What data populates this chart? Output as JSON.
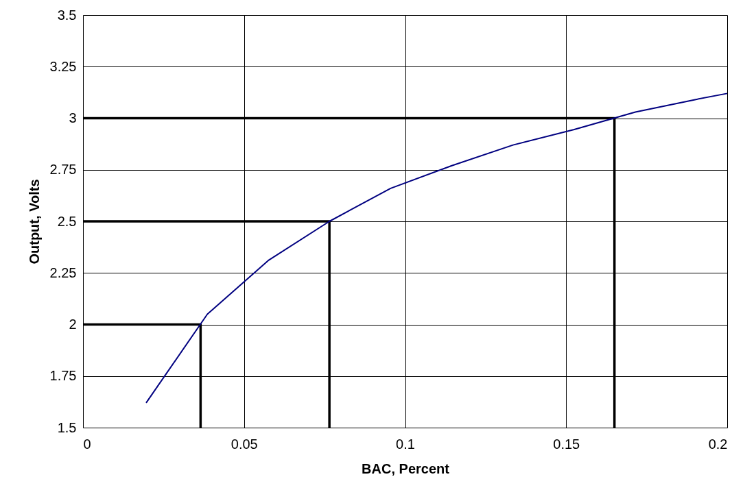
{
  "chart_data": {
    "type": "line",
    "xlabel": "BAC, Percent",
    "ylabel": "Output, Volts",
    "xlim": [
      0,
      0.2
    ],
    "xticks": [
      0,
      0.05,
      0.1,
      0.15,
      0.2
    ],
    "ylim": [
      1.5,
      3.5
    ],
    "yticks": [
      1.5,
      1.75,
      2,
      2.25,
      2.5,
      2.75,
      3,
      3.25,
      3.5
    ],
    "grid": true,
    "marker": "none",
    "line_style": "solid",
    "series": [
      {
        "color": "#000080",
        "x": [
          0.0196,
          0.0386,
          0.0575,
          0.0765,
          0.0955,
          0.1145,
          0.1335,
          0.1525,
          0.1715,
          0.19,
          0.2
        ],
        "values": [
          1.62,
          2.05,
          2.31,
          2.5,
          2.66,
          2.77,
          2.87,
          2.945,
          3.03,
          3.09,
          3.12
        ]
      },
      {
        "color": "#000000",
        "x": [
          0,
          0.0365,
          0.0365
        ],
        "values": [
          2,
          2,
          1.5
        ]
      },
      {
        "color": "#000000",
        "x": [
          0,
          0.0765,
          0.0765
        ],
        "values": [
          2.5,
          2.5,
          1.5
        ]
      },
      {
        "color": "#000000",
        "x": [
          0,
          0.165,
          0.165
        ],
        "values": [
          3,
          3,
          1.5
        ]
      }
    ]
  }
}
